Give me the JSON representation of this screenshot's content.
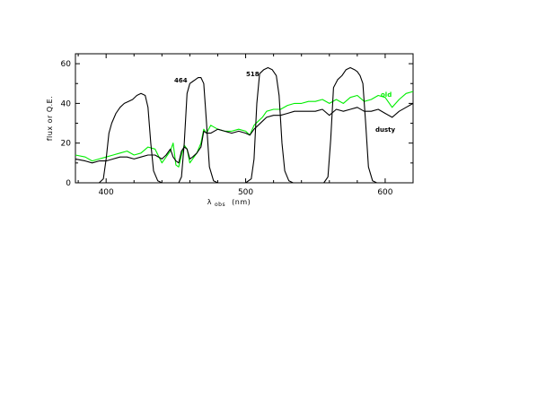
{
  "chart_data": {
    "type": "line",
    "xlabel_main": "λ",
    "xlabel_sub": "obs",
    "xlabel_unit": "(nm)",
    "ylabel": "flux or Q.E.",
    "xlim": [
      378,
      620
    ],
    "ylim": [
      0,
      65
    ],
    "xticks": [
      400,
      500,
      600
    ],
    "yticks": [
      0,
      20,
      40,
      60
    ],
    "annotations": {
      "filter_464": "464",
      "filter_518": "518",
      "old": "old",
      "dusty": "dusty"
    },
    "colors": {
      "old": "#00ee00",
      "dusty": "#000000",
      "filters": "#000000"
    },
    "series": [
      {
        "name": "old",
        "x": [
          378,
          385,
          390,
          395,
          400,
          405,
          410,
          415,
          420,
          425,
          430,
          435,
          440,
          443,
          446,
          448,
          450,
          452,
          454,
          456,
          458,
          460,
          462,
          465,
          468,
          470,
          472,
          475,
          480,
          485,
          490,
          495,
          500,
          503,
          506,
          509,
          512,
          515,
          520,
          525,
          530,
          535,
          540,
          545,
          550,
          555,
          560,
          565,
          570,
          575,
          580,
          585,
          590,
          595,
          600,
          605,
          610,
          615,
          620
        ],
        "y": [
          14,
          13,
          11,
          12,
          13,
          14,
          15,
          16,
          14,
          15,
          18,
          17,
          10,
          13,
          16,
          20,
          9,
          8,
          14,
          19,
          17,
          10,
          12,
          15,
          20,
          27,
          25,
          29,
          27,
          26,
          26,
          27,
          26,
          24,
          29,
          31,
          33,
          36,
          37,
          37,
          39,
          40,
          40,
          41,
          41,
          42,
          40,
          42,
          40,
          43,
          44,
          41,
          42,
          44,
          43,
          38,
          42,
          45,
          46
        ]
      },
      {
        "name": "dusty",
        "x": [
          378,
          385,
          390,
          395,
          400,
          405,
          410,
          415,
          420,
          425,
          430,
          435,
          440,
          443,
          446,
          448,
          450,
          452,
          454,
          456,
          458,
          460,
          462,
          465,
          468,
          470,
          472,
          475,
          480,
          485,
          490,
          495,
          500,
          503,
          506,
          509,
          512,
          515,
          520,
          525,
          530,
          535,
          540,
          545,
          550,
          555,
          560,
          565,
          570,
          575,
          580,
          585,
          590,
          595,
          600,
          605,
          610,
          615,
          620
        ],
        "y": [
          12,
          11,
          10,
          11,
          11,
          12,
          13,
          13,
          12,
          13,
          14,
          14,
          12,
          14,
          17,
          13,
          11,
          10,
          16,
          18,
          17,
          12,
          13,
          15,
          18,
          26,
          25,
          25,
          27,
          26,
          25,
          26,
          25,
          24,
          27,
          29,
          31,
          33,
          34,
          34,
          35,
          36,
          36,
          36,
          36,
          37,
          34,
          37,
          36,
          37,
          38,
          36,
          36,
          37,
          35,
          33,
          36,
          38,
          40
        ]
      },
      {
        "name": "",
        "x": [
          378,
          395,
          398,
          400,
          402,
          404,
          407,
          410,
          413,
          416,
          419,
          422,
          425,
          428,
          430,
          432,
          434,
          437,
          440,
          445
        ],
        "y": [
          0,
          0,
          2,
          12,
          25,
          30,
          35,
          38,
          40,
          41,
          42,
          44,
          45,
          44,
          38,
          20,
          6,
          1,
          0,
          0
        ]
      },
      {
        "name": "",
        "x": [
          445,
          452,
          454,
          456,
          458,
          460,
          462,
          464,
          466,
          468,
          470,
          472,
          474,
          477,
          480
        ],
        "y": [
          0,
          0,
          3,
          20,
          45,
          50,
          51,
          52,
          53,
          53,
          50,
          30,
          8,
          1,
          0
        ]
      },
      {
        "name": "",
        "x": [
          490,
          500,
          504,
          506,
          508,
          510,
          513,
          516,
          519,
          522,
          524,
          526,
          528,
          531,
          534,
          540
        ],
        "y": [
          0,
          0,
          2,
          12,
          40,
          55,
          57,
          58,
          57,
          54,
          44,
          20,
          6,
          1,
          0,
          0
        ]
      },
      {
        "name": "",
        "x": [
          550,
          556,
          559,
          561,
          563,
          566,
          569,
          572,
          575,
          578,
          580,
          582,
          584,
          586,
          588,
          591,
          594,
          620
        ],
        "y": [
          0,
          0,
          3,
          22,
          48,
          52,
          54,
          57,
          58,
          57,
          56,
          54,
          50,
          30,
          8,
          1,
          0,
          0
        ]
      }
    ]
  }
}
